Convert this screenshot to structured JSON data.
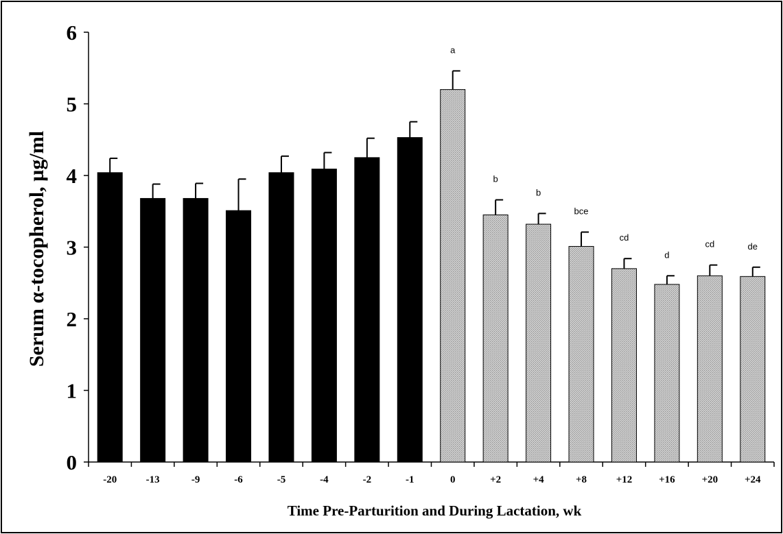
{
  "chart_data": {
    "type": "bar",
    "title": "",
    "xlabel": "Time Pre-Parturition and During Lactation, wk",
    "ylabel": "Serum α-tocopherol, µg/ml",
    "ylim": [
      0,
      6
    ],
    "yticks": [
      "0",
      "1",
      "2",
      "3",
      "4",
      "5",
      "6"
    ],
    "grid": false,
    "legend": "none",
    "categories": [
      "-20",
      "-13",
      "-9",
      "-6",
      "-5",
      "-4",
      "-2",
      "-1",
      "0",
      "+2",
      "+4",
      "+8",
      "+12",
      "+16",
      "+20",
      "+24"
    ],
    "values": [
      4.04,
      3.68,
      3.68,
      3.51,
      4.04,
      4.09,
      4.25,
      4.53,
      5.2,
      3.45,
      3.32,
      3.01,
      2.7,
      2.48,
      2.6,
      2.59
    ],
    "error_upper": [
      4.24,
      3.88,
      3.89,
      3.95,
      4.27,
      4.32,
      4.52,
      4.75,
      5.46,
      3.66,
      3.47,
      3.21,
      2.84,
      2.6,
      2.75,
      2.72
    ],
    "groups": [
      "pre-parturition",
      "pre-parturition",
      "pre-parturition",
      "pre-parturition",
      "pre-parturition",
      "pre-parturition",
      "pre-parturition",
      "pre-parturition",
      "lactation",
      "lactation",
      "lactation",
      "lactation",
      "lactation",
      "lactation",
      "lactation",
      "lactation"
    ],
    "significance_labels": [
      "",
      "",
      "",
      "",
      "",
      "",
      "",
      "",
      "a",
      "b",
      "b",
      "bce",
      "cd",
      "d",
      "cd",
      "de"
    ],
    "colors": {
      "pre-parturition": "#000000",
      "lactation": "#c8c8c8",
      "lactation_pattern": "#9a9a9a",
      "axis": "#000000"
    }
  }
}
